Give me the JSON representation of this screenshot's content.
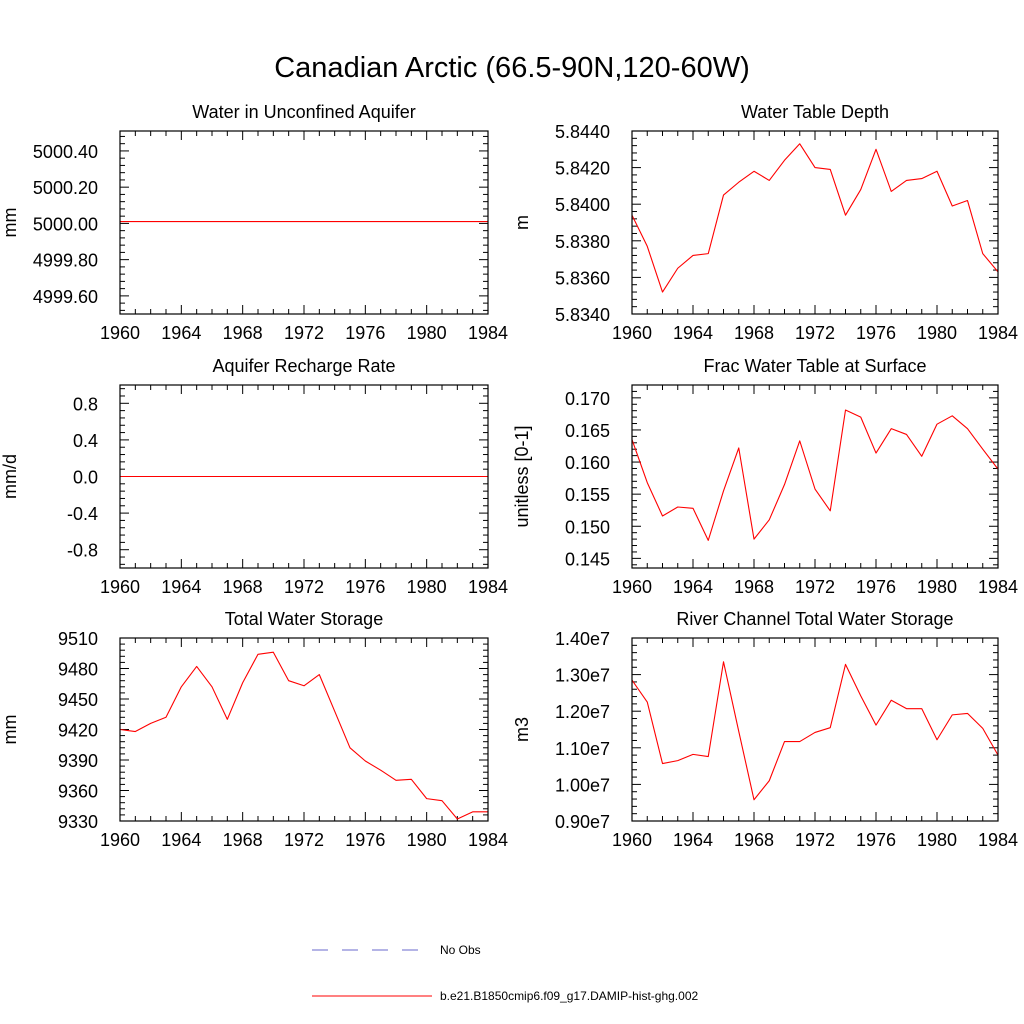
{
  "figure": {
    "title": "Canadian Arctic (66.5-90N,120-60W)",
    "line_color": "#ff0000",
    "obs_color": "#6a6acd"
  },
  "legend": {
    "obs_label": "No Obs",
    "model_label": "b.e21.B1850cmip6.f09_g17.DAMIP-hist-ghg.002"
  },
  "chart_data": [
    {
      "type": "line",
      "title": "Water in Unconfined Aquifer",
      "ylabel": "mm",
      "xlim": [
        1960,
        1984
      ],
      "ylim": [
        4999.5,
        5000.51
      ],
      "xticks": [
        1960,
        1964,
        1968,
        1972,
        1976,
        1980,
        1984
      ],
      "yticks": [
        4999.6,
        4999.8,
        5000.0,
        5000.2,
        5000.4
      ],
      "ytick_labels": [
        "4999.60",
        "4999.80",
        "5000.00",
        "5000.20",
        "5000.40"
      ],
      "x": [
        1960,
        1984
      ],
      "series": [
        {
          "values": [
            5000.01,
            5000.01
          ]
        }
      ]
    },
    {
      "type": "line",
      "title": "Water Table Depth",
      "ylabel": "m",
      "xlim": [
        1960,
        1984
      ],
      "ylim": [
        5.834,
        5.844
      ],
      "xticks": [
        1960,
        1964,
        1968,
        1972,
        1976,
        1980,
        1984
      ],
      "yticks": [
        5.834,
        5.836,
        5.838,
        5.84,
        5.842,
        5.844
      ],
      "ytick_labels": [
        "5.8340",
        "5.8360",
        "5.8380",
        "5.8400",
        "5.8420",
        "5.8440"
      ],
      "x": [
        1960,
        1961,
        1962,
        1963,
        1964,
        1965,
        1966,
        1967,
        1968,
        1969,
        1970,
        1971,
        1972,
        1973,
        1974,
        1975,
        1976,
        1977,
        1978,
        1979,
        1980,
        1981,
        1982,
        1983,
        1984
      ],
      "series": [
        {
          "values": [
            5.8394,
            5.8377,
            5.8352,
            5.8365,
            5.8372,
            5.8373,
            5.8405,
            5.8412,
            5.8418,
            5.8413,
            5.8424,
            5.8433,
            5.842,
            5.8419,
            5.8394,
            5.8408,
            5.843,
            5.8407,
            5.8413,
            5.8414,
            5.8418,
            5.8399,
            5.8402,
            5.8373,
            5.8363
          ]
        }
      ]
    },
    {
      "type": "line",
      "title": "Aquifer Recharge Rate",
      "ylabel": "mm/d",
      "xlim": [
        1960,
        1984
      ],
      "ylim": [
        -1.0,
        1.0
      ],
      "xticks": [
        1960,
        1964,
        1968,
        1972,
        1976,
        1980,
        1984
      ],
      "yticks": [
        -0.8,
        -0.4,
        0.0,
        0.4,
        0.8
      ],
      "ytick_labels": [
        "-0.8",
        "-0.4",
        "0.0",
        "0.4",
        "0.8"
      ],
      "x": [
        1960,
        1984
      ],
      "series": [
        {
          "values": [
            0.0,
            0.0
          ]
        }
      ]
    },
    {
      "type": "line",
      "title": "Frac Water Table at Surface",
      "ylabel": "unitless [0-1]",
      "xlim": [
        1960,
        1984
      ],
      "ylim": [
        0.1435,
        0.172
      ],
      "xticks": [
        1960,
        1964,
        1968,
        1972,
        1976,
        1980,
        1984
      ],
      "yticks": [
        0.145,
        0.15,
        0.155,
        0.16,
        0.165,
        0.17
      ],
      "ytick_labels": [
        "0.145",
        "0.150",
        "0.155",
        "0.160",
        "0.165",
        "0.170"
      ],
      "x": [
        1960,
        1961,
        1962,
        1963,
        1964,
        1965,
        1966,
        1967,
        1968,
        1969,
        1970,
        1971,
        1972,
        1973,
        1974,
        1975,
        1976,
        1977,
        1978,
        1979,
        1980,
        1981,
        1982,
        1983,
        1984
      ],
      "series": [
        {
          "values": [
            0.1635,
            0.1568,
            0.1516,
            0.153,
            0.1528,
            0.1478,
            0.1555,
            0.1622,
            0.148,
            0.151,
            0.1565,
            0.1633,
            0.1558,
            0.1524,
            0.1681,
            0.167,
            0.1614,
            0.1652,
            0.1643,
            0.1609,
            0.1659,
            0.1672,
            0.1652,
            0.162,
            0.1589
          ]
        }
      ]
    },
    {
      "type": "line",
      "title": "Total Water Storage",
      "ylabel": "mm",
      "xlim": [
        1960,
        1984
      ],
      "ylim": [
        9330,
        9510
      ],
      "xticks": [
        1960,
        1964,
        1968,
        1972,
        1976,
        1980,
        1984
      ],
      "yticks": [
        9330,
        9360,
        9390,
        9420,
        9450,
        9480,
        9510
      ],
      "ytick_labels": [
        "9330",
        "9360",
        "9390",
        "9420",
        "9450",
        "9480",
        "9510"
      ],
      "x": [
        1960,
        1961,
        1962,
        1963,
        1964,
        1965,
        1966,
        1967,
        1968,
        1969,
        1970,
        1971,
        1972,
        1973,
        1974,
        1975,
        1976,
        1977,
        1978,
        1979,
        1980,
        1981,
        1982,
        1983,
        1984
      ],
      "series": [
        {
          "values": [
            9420,
            9418,
            9426,
            9432,
            9462,
            9482,
            9462,
            9430,
            9466,
            9494,
            9496,
            9468,
            9463,
            9474,
            9438,
            9402,
            9389,
            9380,
            9370,
            9371,
            9352,
            9350,
            9332,
            9339,
            9339
          ]
        }
      ]
    },
    {
      "type": "line",
      "title": "River Channel Total Water Storage",
      "ylabel": "m3",
      "xlim": [
        1960,
        1984
      ],
      "ylim": [
        9000000,
        14000000
      ],
      "xticks": [
        1960,
        1964,
        1968,
        1972,
        1976,
        1980,
        1984
      ],
      "yticks": [
        9000000,
        10000000,
        11000000,
        12000000,
        13000000,
        14000000
      ],
      "ytick_labels": [
        "0.90e7",
        "1.00e7",
        "1.10e7",
        "1.20e7",
        "1.30e7",
        "1.40e7"
      ],
      "x": [
        1960,
        1961,
        1962,
        1963,
        1964,
        1965,
        1966,
        1967,
        1968,
        1969,
        1970,
        1971,
        1972,
        1973,
        1974,
        1975,
        1976,
        1977,
        1978,
        1979,
        1980,
        1981,
        1982,
        1983,
        1984
      ],
      "series": [
        {
          "values": [
            12850000,
            12250000,
            10570000,
            10650000,
            10820000,
            10760000,
            13350000,
            11450000,
            9580000,
            10100000,
            11170000,
            11170000,
            11420000,
            11550000,
            13280000,
            12420000,
            11620000,
            12300000,
            12070000,
            12070000,
            11220000,
            11900000,
            11940000,
            11530000,
            10800000
          ]
        }
      ]
    }
  ]
}
